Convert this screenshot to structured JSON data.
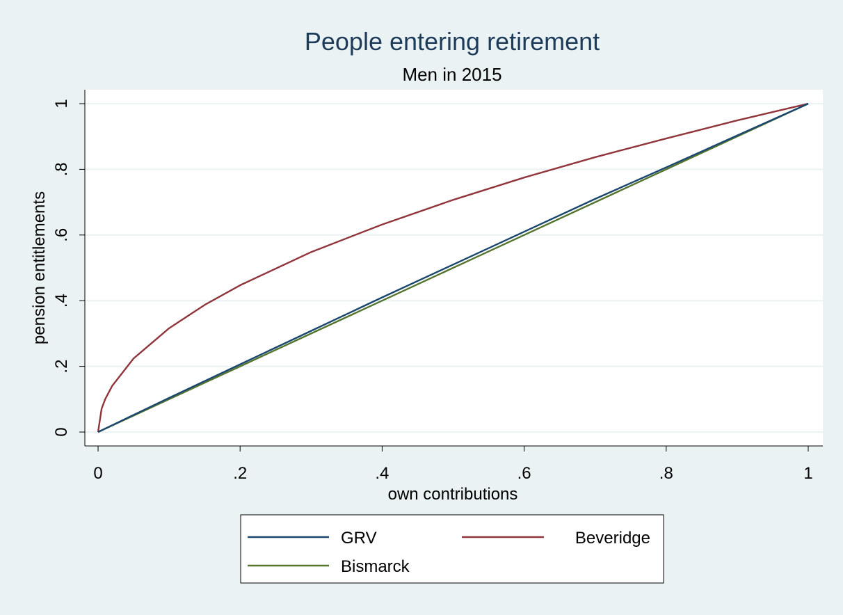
{
  "chart_data": {
    "type": "line",
    "title": "People entering retirement",
    "subtitle": "Men in 2015",
    "xlabel": "own contributions",
    "ylabel": "pension entitlements",
    "xlim": [
      0,
      1
    ],
    "ylim": [
      0,
      1
    ],
    "xticks": [
      0,
      0.2,
      0.4,
      0.6,
      0.8,
      1
    ],
    "xtick_labels": [
      "0",
      ".2",
      ".4",
      ".6",
      ".8",
      "1"
    ],
    "yticks": [
      0,
      0.2,
      0.4,
      0.6,
      0.8,
      1
    ],
    "ytick_labels": [
      "0",
      ".2",
      ".4",
      ".6",
      ".8",
      "1"
    ],
    "grid": "horizontal",
    "legend_position": "bottom",
    "x": [
      0,
      0.005,
      0.01,
      0.02,
      0.05,
      0.1,
      0.15,
      0.2,
      0.3,
      0.4,
      0.5,
      0.6,
      0.7,
      0.8,
      0.9,
      1
    ],
    "series": [
      {
        "name": "GRV",
        "color": "#1a476f",
        "values": [
          0,
          0.0052,
          0.0104,
          0.0208,
          0.052,
          0.104,
          0.155,
          0.206,
          0.308,
          0.41,
          0.51,
          0.61,
          0.71,
          0.806,
          0.903,
          1
        ]
      },
      {
        "name": "Beveridge",
        "color": "#90353b",
        "values": [
          0,
          0.071,
          0.1,
          0.141,
          0.224,
          0.316,
          0.387,
          0.447,
          0.548,
          0.632,
          0.707,
          0.775,
          0.837,
          0.894,
          0.949,
          1
        ]
      },
      {
        "name": "Bismarck",
        "color": "#55752f",
        "values": [
          0,
          0.005,
          0.01,
          0.02,
          0.05,
          0.1,
          0.15,
          0.2,
          0.3,
          0.4,
          0.5,
          0.6,
          0.7,
          0.8,
          0.9,
          1
        ]
      }
    ],
    "colors": {
      "background": "#eaf2f3",
      "plot_background": "#ffffff",
      "grid": "#eaf2f3",
      "title": "#1e3c5a",
      "text": "#000000"
    }
  }
}
